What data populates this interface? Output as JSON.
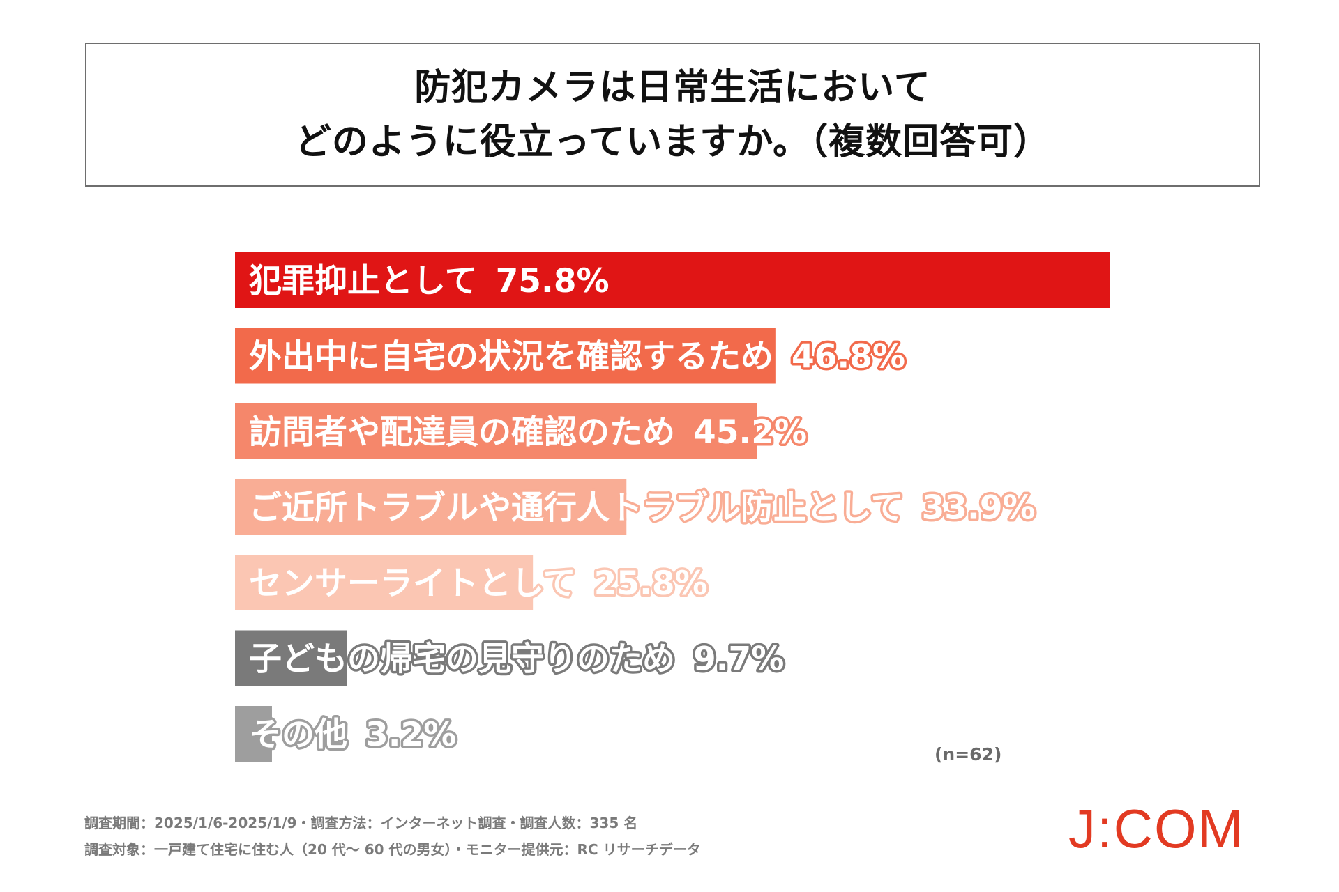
{
  "title": {
    "line1": "防犯カメラは日常生活において",
    "line2": "どのように役立っていますか。（複数回答可）"
  },
  "chart_data": {
    "type": "bar",
    "orientation": "horizontal",
    "xlim": [
      0,
      75.8
    ],
    "categories": [
      "犯罪抑止として",
      "外出中に自宅の状況を確認するため",
      "訪問者や配達員の確認のため",
      "ご近所トラブルや通行人トラブル防止として",
      "センサーライトとして",
      "子どもの帰宅の見守りのため",
      "その他"
    ],
    "values": [
      75.8,
      46.8,
      45.2,
      33.9,
      25.8,
      9.7,
      3.2
    ],
    "value_labels": [
      "75.8%",
      "46.8%",
      "45.2%",
      "33.9%",
      "25.8%",
      "9.7%",
      "3.2%"
    ],
    "colors": [
      "#e01515",
      "#f26a4b",
      "#f5876b",
      "#f9ad95",
      "#fbc6b3",
      "#7a7a7a",
      "#9e9e9e"
    ],
    "sample_note": "(n=62)"
  },
  "footer": {
    "line1": "調査期間：2025/1/6-2025/1/9・調査方法：インターネット調査・調査人数：335 名",
    "line2": "調査対象：一戸建て住宅に住む人（20 代～ 60 代の男女）・モニター提供元：RC リサーチデータ"
  },
  "logo": {
    "text": "J:COM",
    "color": "#e23a22"
  }
}
